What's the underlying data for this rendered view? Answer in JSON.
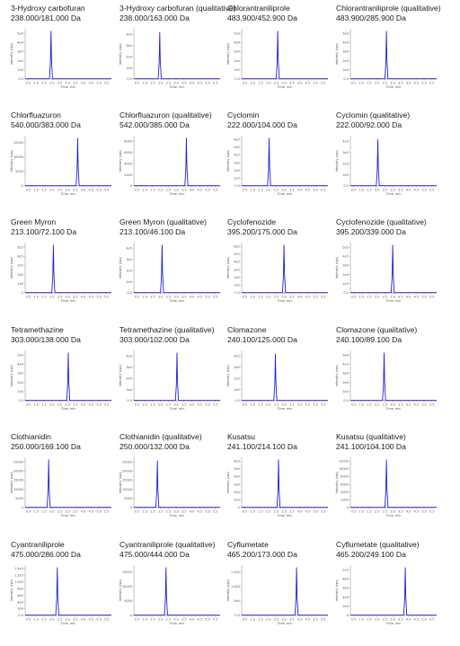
{
  "chart_data": [
    {
      "type": "line",
      "title": "3-Hydroxy carbofuran",
      "subtitle": "238.000/181.000 Da",
      "ylabel": "Intensity (cps)",
      "xlabel": "Time, min",
      "x_ticks": [
        "0.5",
        "1.0",
        "1.5",
        "2.0",
        "2.5",
        "3.0",
        "3.5",
        "4.0",
        "4.5",
        "5.0",
        "5.5"
      ],
      "y_ticks": [
        "0.0",
        "1e4",
        "2e4",
        "3e4",
        "4e4",
        "5e4"
      ],
      "peak_rt": 1.95,
      "peak_height": 0.95
    },
    {
      "type": "line",
      "title": "3-Hydroxy carbofuran (qualitative)",
      "subtitle": "238.000/163.000 Da",
      "ylabel": "Intensity (cps)",
      "xlabel": "Time, min",
      "x_ticks": [
        "0.5",
        "1.0",
        "1.5",
        "2.0",
        "2.5",
        "3.0",
        "3.5",
        "4.0",
        "4.5",
        "5.0",
        "5.5"
      ],
      "y_ticks": [
        "0.0",
        "1e4",
        "2e4",
        "3e4",
        "4e4"
      ],
      "peak_rt": 1.95,
      "peak_height": 0.93
    },
    {
      "type": "line",
      "title": "Chlorantraniliprole",
      "subtitle": "483.900/452.900 Da",
      "ylabel": "Intensity (cps)",
      "xlabel": "Time, min",
      "x_ticks": [
        "0.5",
        "1.0",
        "1.5",
        "2.0",
        "2.5",
        "3.0",
        "3.5",
        "4.0",
        "4.5",
        "5.0",
        "5.5"
      ],
      "y_ticks": [
        "0.0",
        "1e4",
        "2e4",
        "3e4",
        "4e4",
        "5e4"
      ],
      "peak_rt": 2.6,
      "peak_height": 0.95
    },
    {
      "type": "line",
      "title": "Chlorantraniliprole (qualitative)",
      "subtitle": "483.900/285.900 Da",
      "ylabel": "Intensity (cps)",
      "xlabel": "Time, min",
      "x_ticks": [
        "0.5",
        "1.0",
        "1.5",
        "2.0",
        "2.5",
        "3.0",
        "3.5",
        "4.0",
        "4.5",
        "5.0",
        "5.5"
      ],
      "y_ticks": [
        "0.0",
        "1e4",
        "2e4",
        "3e4",
        "4e4",
        "5e4"
      ],
      "peak_rt": 2.6,
      "peak_height": 0.95
    },
    {
      "type": "line",
      "title": "Chlorfluazuron",
      "subtitle": "540.000/383.000 Da",
      "ylabel": "Intensity (cps)",
      "xlabel": "Time, min",
      "x_ticks": [
        "0.5",
        "1.0",
        "1.5",
        "2.0",
        "2.5",
        "3.0",
        "3.5",
        "4.0",
        "4.5",
        "5.0",
        "5.5"
      ],
      "y_ticks": [
        "0",
        "5000",
        "10000",
        "15000"
      ],
      "peak_rt": 3.65,
      "peak_height": 0.95
    },
    {
      "type": "line",
      "title": "Chlorfluazuron (qualitative)",
      "subtitle": "542.000/385.000 Da",
      "ylabel": "Intensity (cps)",
      "xlabel": "Time, min",
      "x_ticks": [
        "0.5",
        "1.0",
        "1.5",
        "2.0",
        "2.5",
        "3.0",
        "3.5",
        "4.0",
        "4.5",
        "5.0",
        "5.5"
      ],
      "y_ticks": [
        "0",
        "2000",
        "4000",
        "6000",
        "8000"
      ],
      "peak_rt": 3.65,
      "peak_height": 0.95
    },
    {
      "type": "line",
      "title": "Cyclomin",
      "subtitle": "222.000/104.000 Da",
      "ylabel": "Intensity (cps)",
      "xlabel": "Time, min",
      "x_ticks": [
        "0.5",
        "1.0",
        "1.5",
        "2.0",
        "2.5",
        "3.0",
        "3.5",
        "4.0",
        "4.5",
        "5.0",
        "5.5"
      ],
      "y_ticks": [
        "0.0",
        "1e5",
        "2e5",
        "3e5",
        "4e5",
        "5e5",
        "6e5"
      ],
      "peak_rt": 2.05,
      "peak_height": 0.95
    },
    {
      "type": "line",
      "title": "Cyclomin (qualitative)",
      "subtitle": "222.000/92.000 Da",
      "ylabel": "Intensity (cps)",
      "xlabel": "Time, min",
      "x_ticks": [
        "0.5",
        "1.0",
        "1.5",
        "2.0",
        "2.5",
        "3.0",
        "3.5",
        "4.0",
        "4.5",
        "5.0",
        "5.5"
      ],
      "y_ticks": [
        "0.0",
        "1e5",
        "2e5",
        "3e5",
        "4e5"
      ],
      "peak_rt": 2.05,
      "peak_height": 0.92
    },
    {
      "type": "line",
      "title": "Green Myron",
      "subtitle": "213.100/72.100 Da",
      "ylabel": "Intensity (cps)",
      "xlabel": "Time, min",
      "x_ticks": [
        "0.5",
        "1.0",
        "1.5",
        "2.0",
        "2.5",
        "3.0",
        "3.5",
        "4.0",
        "4.5",
        "5.0",
        "5.5"
      ],
      "y_ticks": [
        "0",
        "1e5",
        "2e5",
        "3e5",
        "4e5",
        "5e5"
      ],
      "peak_rt": 2.1,
      "peak_height": 0.95
    },
    {
      "type": "line",
      "title": "Green Myron (qualitative)",
      "subtitle": "213.100/46.100 Da",
      "ylabel": "Intensity (cps)",
      "xlabel": "Time, min",
      "x_ticks": [
        "0.5",
        "1.0",
        "1.5",
        "2.0",
        "2.5",
        "3.0",
        "3.5",
        "4.0",
        "4.5",
        "5.0",
        "5.5"
      ],
      "y_ticks": [
        "0.0",
        "1e5",
        "2e5",
        "3e5",
        "4e5"
      ],
      "peak_rt": 2.1,
      "peak_height": 0.95
    },
    {
      "type": "line",
      "title": "Cyclofenozide",
      "subtitle": "395.200/175.000 Da",
      "ylabel": "Intensity (cps)",
      "xlabel": "Time, min",
      "x_ticks": [
        "0.5",
        "1.0",
        "1.5",
        "2.0",
        "2.5",
        "3.0",
        "3.5",
        "4.0",
        "4.5",
        "5.0",
        "5.5"
      ],
      "y_ticks": [
        "0.0",
        "1e5",
        "2e5",
        "3e5",
        "4e5",
        "5e5",
        "6e5"
      ],
      "peak_rt": 3.0,
      "peak_height": 0.95
    },
    {
      "type": "line",
      "title": "Cyclofenozide (qualitative)",
      "subtitle": "395.200/339.000 Da",
      "ylabel": "Intensity (cps)",
      "xlabel": "Time, min",
      "x_ticks": [
        "0.5",
        "1.0",
        "1.5",
        "2.0",
        "2.5",
        "3.0",
        "3.5",
        "4.0",
        "4.5",
        "5.0",
        "5.5"
      ],
      "y_ticks": [
        "0.0",
        "1e5",
        "2e5",
        "3e5",
        "4e5",
        "5e5"
      ],
      "peak_rt": 3.0,
      "peak_height": 0.95
    },
    {
      "type": "line",
      "title": "Tetramethazine",
      "subtitle": "303.000/138.000 Da",
      "ylabel": "Intensity (cps)",
      "xlabel": "Time, min",
      "x_ticks": [
        "0.5",
        "1.0",
        "1.5",
        "2.0",
        "2.5",
        "3.0",
        "3.5",
        "4.0",
        "4.5",
        "5.0",
        "5.5"
      ],
      "y_ticks": [
        "0.0",
        "1e4",
        "2e4",
        "3e4",
        "4e4",
        "5e4"
      ],
      "peak_rt": 3.05,
      "peak_height": 0.95
    },
    {
      "type": "line",
      "title": "Tetramethazine (qualitative)",
      "subtitle": "303.000/102.000 Da",
      "ylabel": "Intensity (cps)",
      "xlabel": "Time, min",
      "x_ticks": [
        "0.5",
        "1.0",
        "1.5",
        "2.0",
        "2.5",
        "3.0",
        "3.5",
        "4.0",
        "4.5",
        "5.0",
        "5.5"
      ],
      "y_ticks": [
        "0.0",
        "1e4",
        "2e4",
        "3e4",
        "4e4"
      ],
      "peak_rt": 3.05,
      "peak_height": 0.95
    },
    {
      "type": "line",
      "title": "Clomazone",
      "subtitle": "240.100/125.000 Da",
      "ylabel": "Intensity (cps)",
      "xlabel": "Time, min",
      "x_ticks": [
        "0.5",
        "1.0",
        "1.5",
        "2.0",
        "2.5",
        "3.0",
        "3.5",
        "4.0",
        "4.5",
        "5.0",
        "5.5"
      ],
      "y_ticks": [
        "0.0",
        "1e5",
        "2e5",
        "3e5",
        "4e5"
      ],
      "peak_rt": 2.45,
      "peak_height": 0.93
    },
    {
      "type": "line",
      "title": "Clomazone (qualitative)",
      "subtitle": "240.100/89.100 Da",
      "ylabel": "Intensity (cps)",
      "xlabel": "Time, min",
      "x_ticks": [
        "0.5",
        "1.0",
        "1.5",
        "2.0",
        "2.5",
        "3.0",
        "3.5",
        "4.0",
        "4.5",
        "5.0",
        "5.5"
      ],
      "y_ticks": [
        "0.0",
        "1e4",
        "2e4",
        "3e4",
        "4e4",
        "5e4"
      ],
      "peak_rt": 2.45,
      "peak_height": 0.95
    },
    {
      "type": "line",
      "title": "Clothianidin",
      "subtitle": "250.000/169.100 Da",
      "ylabel": "Intensity (cps)",
      "xlabel": "Time, min",
      "x_ticks": [
        "0.5",
        "1.0",
        "1.5",
        "2.0",
        "2.5",
        "3.0",
        "3.5",
        "4.0",
        "4.5",
        "5.0",
        "5.5"
      ],
      "y_ticks": [
        "0",
        "5000",
        "10000",
        "15000",
        "20000",
        "25000"
      ],
      "peak_rt": 1.8,
      "peak_height": 0.95
    },
    {
      "type": "line",
      "title": "Clothianidin (qualitative)",
      "subtitle": "250.000/132.000 Da",
      "ylabel": "Intensity (cps)",
      "xlabel": "Time, min",
      "x_ticks": [
        "0.5",
        "1.0",
        "1.5",
        "2.0",
        "2.5",
        "3.0",
        "3.5",
        "4.0",
        "4.5",
        "5.0",
        "5.5"
      ],
      "y_ticks": [
        "0",
        "5000",
        "10000",
        "15000",
        "20000",
        "25000"
      ],
      "peak_rt": 1.8,
      "peak_height": 0.93
    },
    {
      "type": "line",
      "title": "Kusatsu",
      "subtitle": "241.100/214.100 Da",
      "ylabel": "Intensity (cps)",
      "xlabel": "Time, min",
      "x_ticks": [
        "0.5",
        "1.0",
        "1.5",
        "2.0",
        "2.5",
        "3.0",
        "3.5",
        "4.0",
        "4.5",
        "5.0",
        "5.5"
      ],
      "y_ticks": [
        "0",
        "1e4",
        "2e4",
        "3e4",
        "4e4",
        "5e4",
        "6e4"
      ],
      "peak_rt": 2.65,
      "peak_height": 0.95
    },
    {
      "type": "line",
      "title": "Kusatsu (qualitative)",
      "subtitle": "241.100/104.100 Da",
      "ylabel": "Intensity (cps)",
      "xlabel": "Time, min",
      "x_ticks": [
        "0.5",
        "1.0",
        "1.5",
        "2.0",
        "2.5",
        "3.0",
        "3.5",
        "4.0",
        "4.5",
        "5.0",
        "5.5"
      ],
      "y_ticks": [
        "0",
        "2000",
        "4000",
        "6000",
        "8000",
        "10000",
        "12000"
      ],
      "peak_rt": 2.6,
      "peak_height": 0.95
    },
    {
      "type": "line",
      "title": "Cyantraniliprole",
      "subtitle": "475.000/286.000 Da",
      "ylabel": "Intensity (cps)",
      "xlabel": "Time, min",
      "x_ticks": [
        "0.5",
        "1.0",
        "1.5",
        "2.0",
        "2.5",
        "3.0",
        "3.5",
        "4.0",
        "4.5",
        "5.0",
        "5.5"
      ],
      "y_ticks": [
        "0.0",
        "2e4",
        "4e4",
        "6e4",
        "8e4",
        "1.0e5",
        "1.2e5",
        "1.4e5"
      ],
      "peak_rt": 2.35,
      "peak_height": 0.95
    },
    {
      "type": "line",
      "title": "Cyantraniliprole (qualitative)",
      "subtitle": "475.000/444.000 Da",
      "ylabel": "Intensity (cps)",
      "xlabel": "Time, min",
      "x_ticks": [
        "0.5",
        "1.0",
        "1.5",
        "2.0",
        "2.5",
        "3.0",
        "3.5",
        "4.0",
        "4.5",
        "5.0",
        "5.5"
      ],
      "y_ticks": [
        "0",
        "5000",
        "10000",
        "15000"
      ],
      "peak_rt": 2.35,
      "peak_height": 0.95
    },
    {
      "type": "line",
      "title": "Cyflumetate",
      "subtitle": "465.200/173.000 Da",
      "ylabel": "Intensity (cps)",
      "xlabel": "Time, min",
      "x_ticks": [
        "0.5",
        "1.0",
        "1.5",
        "2.0",
        "2.5",
        "3.0",
        "3.5",
        "4.0",
        "4.5",
        "5.0",
        "5.5"
      ],
      "y_ticks": [
        "0.0",
        "5e4",
        "1.0e5",
        "1.5e5"
      ],
      "peak_rt": 3.8,
      "peak_height": 0.95
    },
    {
      "type": "line",
      "title": "Cyflumetate (qualitative)",
      "subtitle": "465.200/249.100 Da",
      "ylabel": "Intensity (cps)",
      "xlabel": "Time, min",
      "x_ticks": [
        "0.5",
        "1.0",
        "1.5",
        "2.0",
        "2.5",
        "3.0",
        "3.5",
        "4.0",
        "4.5",
        "5.0",
        "5.5"
      ],
      "y_ticks": [
        "0",
        "2e4",
        "4e4",
        "6e4",
        "8e4",
        "1e5"
      ],
      "peak_rt": 3.8,
      "peak_height": 0.95
    }
  ]
}
